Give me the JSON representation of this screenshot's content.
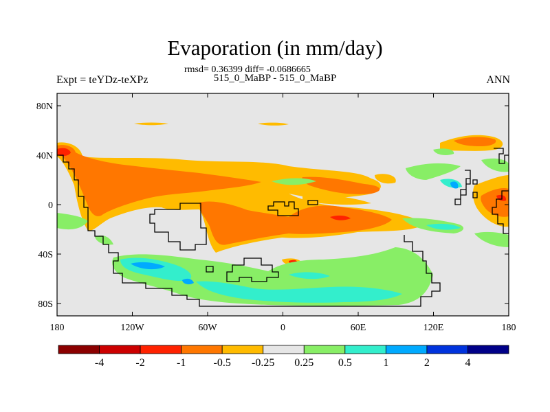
{
  "chart_data": {
    "type": "heatmap",
    "title": "Evaporation (in mm/day)",
    "stats_text": "rmsd= 0.36399 diff= -0.0686665",
    "case_text": "515_0_MaBP - 515_0_MaBP",
    "left_label": "Expt = teYDz-teXPz",
    "right_label": "ANN",
    "x_axis": {
      "range": [
        -180,
        180
      ],
      "ticks": [
        {
          "value": -180,
          "label": "180"
        },
        {
          "value": -120,
          "label": "120W"
        },
        {
          "value": -60,
          "label": "60W"
        },
        {
          "value": 0,
          "label": "0"
        },
        {
          "value": 60,
          "label": "60E"
        },
        {
          "value": 120,
          "label": "120E"
        },
        {
          "value": 180,
          "label": "180"
        }
      ]
    },
    "y_axis": {
      "range": [
        -90,
        90
      ],
      "ticks": [
        {
          "value": 80,
          "label": "80N"
        },
        {
          "value": 40,
          "label": "40N"
        },
        {
          "value": 0,
          "label": "0"
        },
        {
          "value": -40,
          "label": "40S"
        },
        {
          "value": -80,
          "label": "80S"
        }
      ]
    },
    "colorbar": {
      "colors": [
        "#8b0000",
        "#cc0000",
        "#ff2200",
        "#ff7700",
        "#ffbb00",
        "#e6e6e6",
        "#88ee66",
        "#33eecc",
        "#00aaff",
        "#0033dd",
        "#000088"
      ],
      "labels": [
        "-4",
        "-2",
        "-1",
        "-0.5",
        "-0.25",
        "0.25",
        "0.5",
        "1",
        "2",
        "4"
      ]
    },
    "background_color": "#e6e6e6"
  }
}
